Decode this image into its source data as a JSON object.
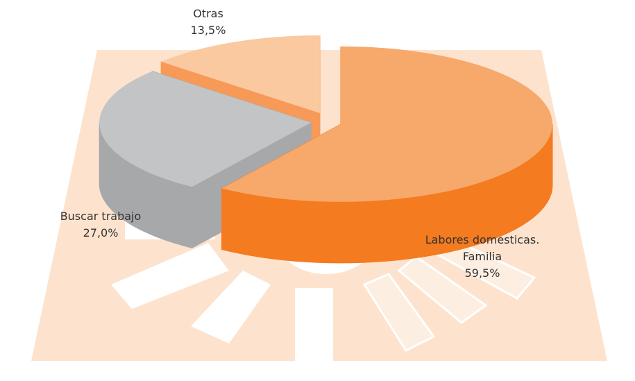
{
  "chart_data": {
    "type": "pie3d",
    "categories": [
      "Labores domesticas. Familia",
      "Buscar trabajo",
      "Otras"
    ],
    "values": [
      59.5,
      27.0,
      13.5
    ],
    "value_labels": [
      "59,5%",
      "27,0%",
      "13,5%"
    ],
    "colors": [
      "#f7a86b",
      "#c3c4c6",
      "#fbc9a0"
    ],
    "side_colors": [
      "#f47b20",
      "#a7a8aa",
      "#f79a58"
    ]
  }
}
